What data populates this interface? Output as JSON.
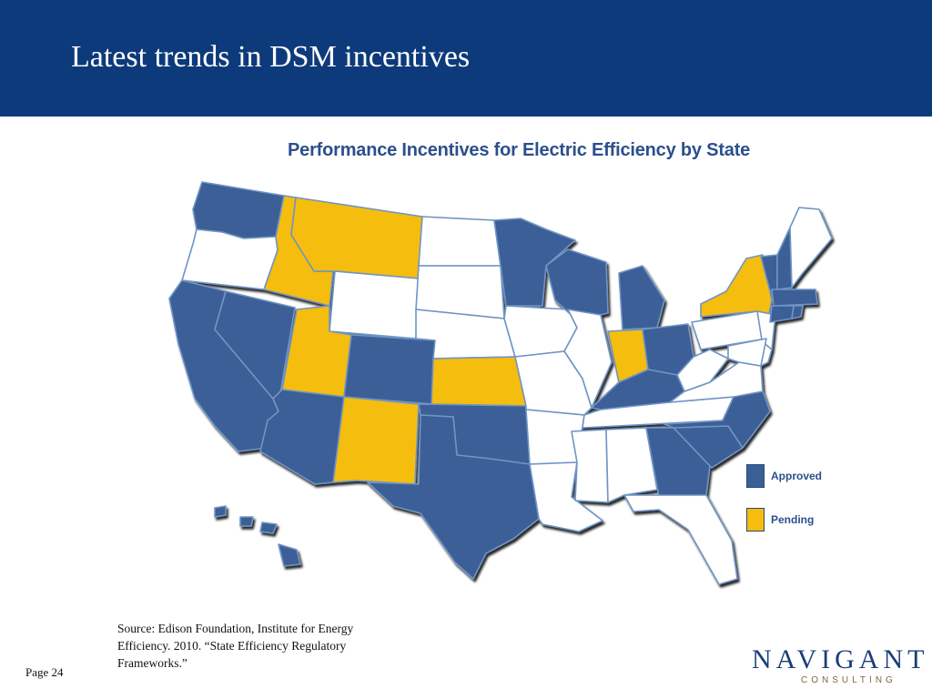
{
  "slide": {
    "title": "Latest trends in DSM incentives",
    "page_number": "Page 24",
    "source_text": "Source: Edison Foundation, Institute for Energy Efficiency. 2010. “State Efficiency Regulatory Frameworks.”"
  },
  "map": {
    "title": "Performance Incentives for Electric Efficiency by State",
    "legend": [
      {
        "key": "approved",
        "label": "Approved",
        "color": "#3a5f96"
      },
      {
        "key": "pending",
        "label": "Pending",
        "color": "#f5bd0e"
      }
    ],
    "none_color": "#ffffff",
    "states": {
      "approved": [
        "WA",
        "CA",
        "NV",
        "AZ",
        "CO",
        "TX",
        "OK",
        "MN",
        "WI",
        "MI",
        "OH",
        "KY",
        "GA",
        "NC",
        "SC",
        "VT",
        "NH",
        "MA",
        "CT",
        "RI",
        "HI"
      ],
      "pending": [
        "ID",
        "MT",
        "UT",
        "NM",
        "KS",
        "IN",
        "NY"
      ]
    }
  },
  "logo": {
    "name": "NAVIGANT",
    "tagline": "CONSULTING"
  }
}
